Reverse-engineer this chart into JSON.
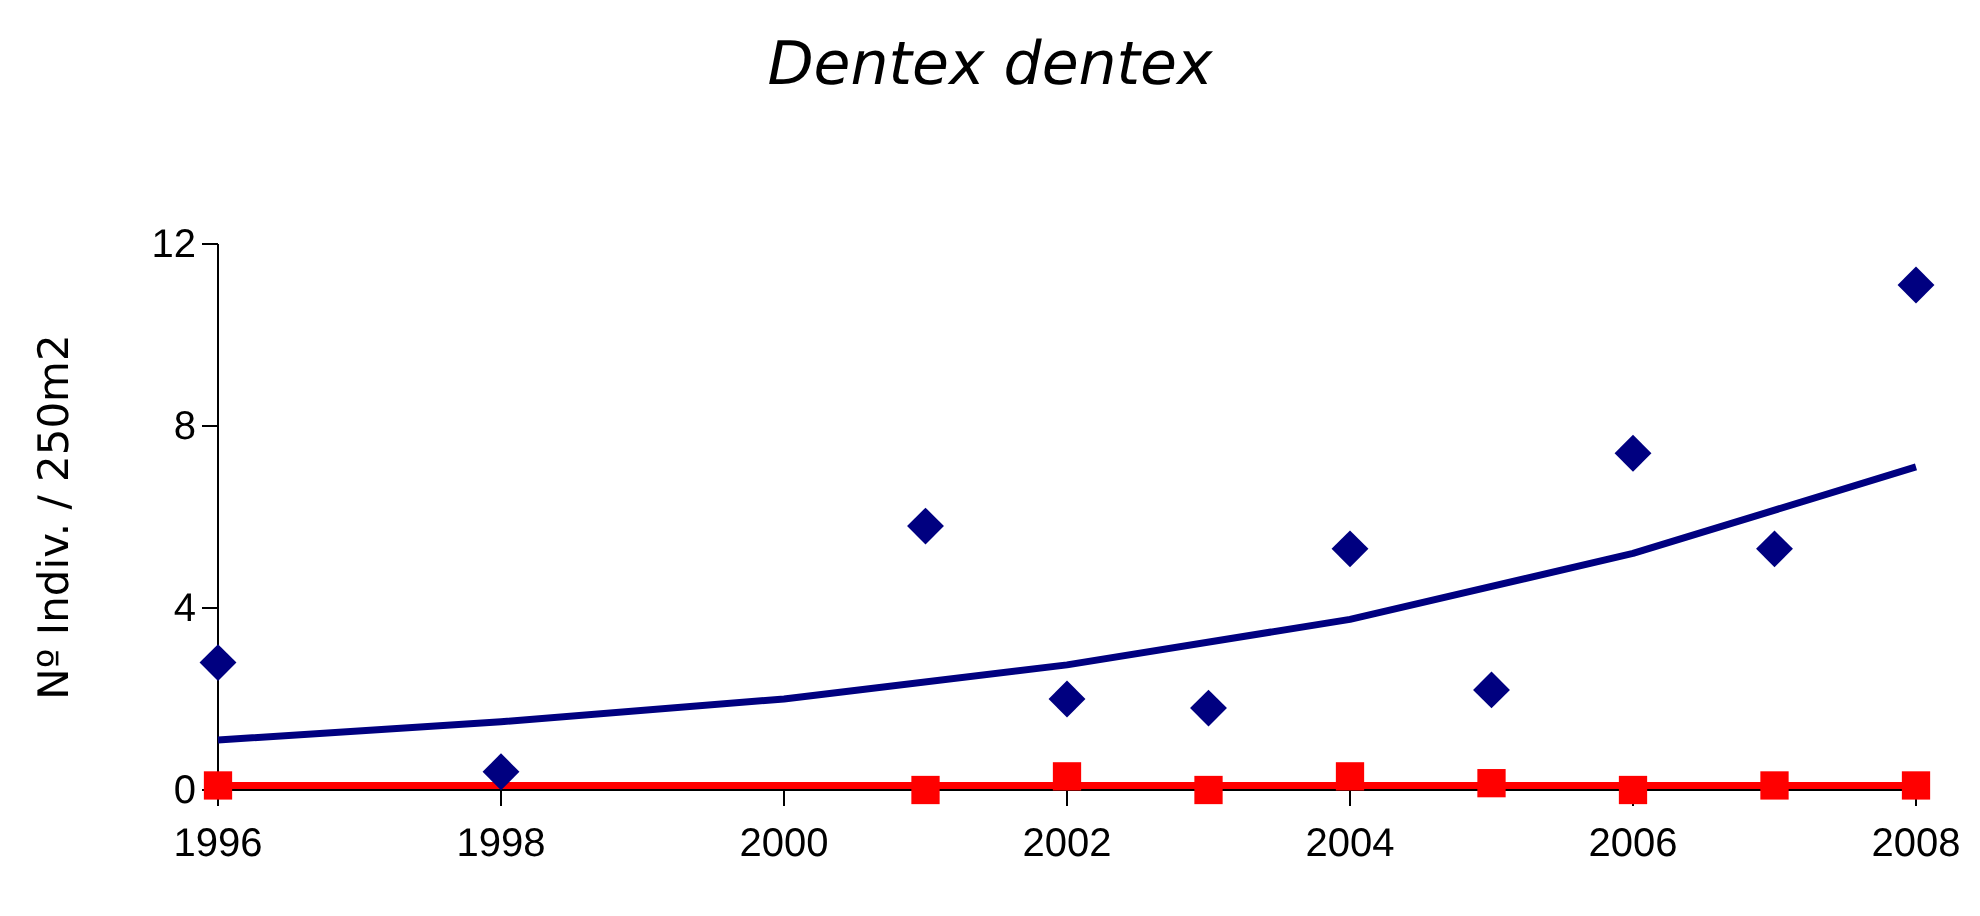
{
  "chart_data": {
    "type": "scatter",
    "title": "Dentex dentex",
    "ylabel": "Nº Indiv. / 250m2",
    "xlim": [
      1996,
      2008
    ],
    "xticks": [
      1996,
      1998,
      2000,
      2002,
      2004,
      2006,
      2008
    ],
    "ylim": [
      0,
      12
    ],
    "yticks": [
      0,
      4,
      8,
      12
    ],
    "grid": false,
    "series": [
      {
        "marker": "diamond",
        "color": "#000080",
        "x": [
          1996,
          1998,
          2001,
          2002,
          2003,
          2004,
          2005,
          2006,
          2007,
          2008
        ],
        "values": [
          2.8,
          0.4,
          5.8,
          2.0,
          1.8,
          5.3,
          2.2,
          7.4,
          5.3,
          11.1
        ]
      },
      {
        "marker": "square",
        "color": "#ff0000",
        "x": [
          1996,
          2001,
          2002,
          2003,
          2004,
          2005,
          2006,
          2007,
          2008
        ],
        "values": [
          0.1,
          0,
          0.3,
          0,
          0.3,
          0.15,
          0,
          0.1,
          0.1
        ]
      },
      {
        "type": "line",
        "marker": "none",
        "line_style": "solid",
        "color": "#000080",
        "x": [
          1996,
          1998,
          2000,
          2002,
          2004,
          2006,
          2008
        ],
        "values": [
          1.1,
          1.5,
          2.0,
          2.75,
          3.75,
          5.2,
          7.1
        ]
      },
      {
        "type": "line",
        "marker": "none",
        "line_style": "solid",
        "color": "#ff0000",
        "x": [
          1996,
          2008
        ],
        "values": [
          0.1,
          0.1
        ]
      }
    ]
  }
}
